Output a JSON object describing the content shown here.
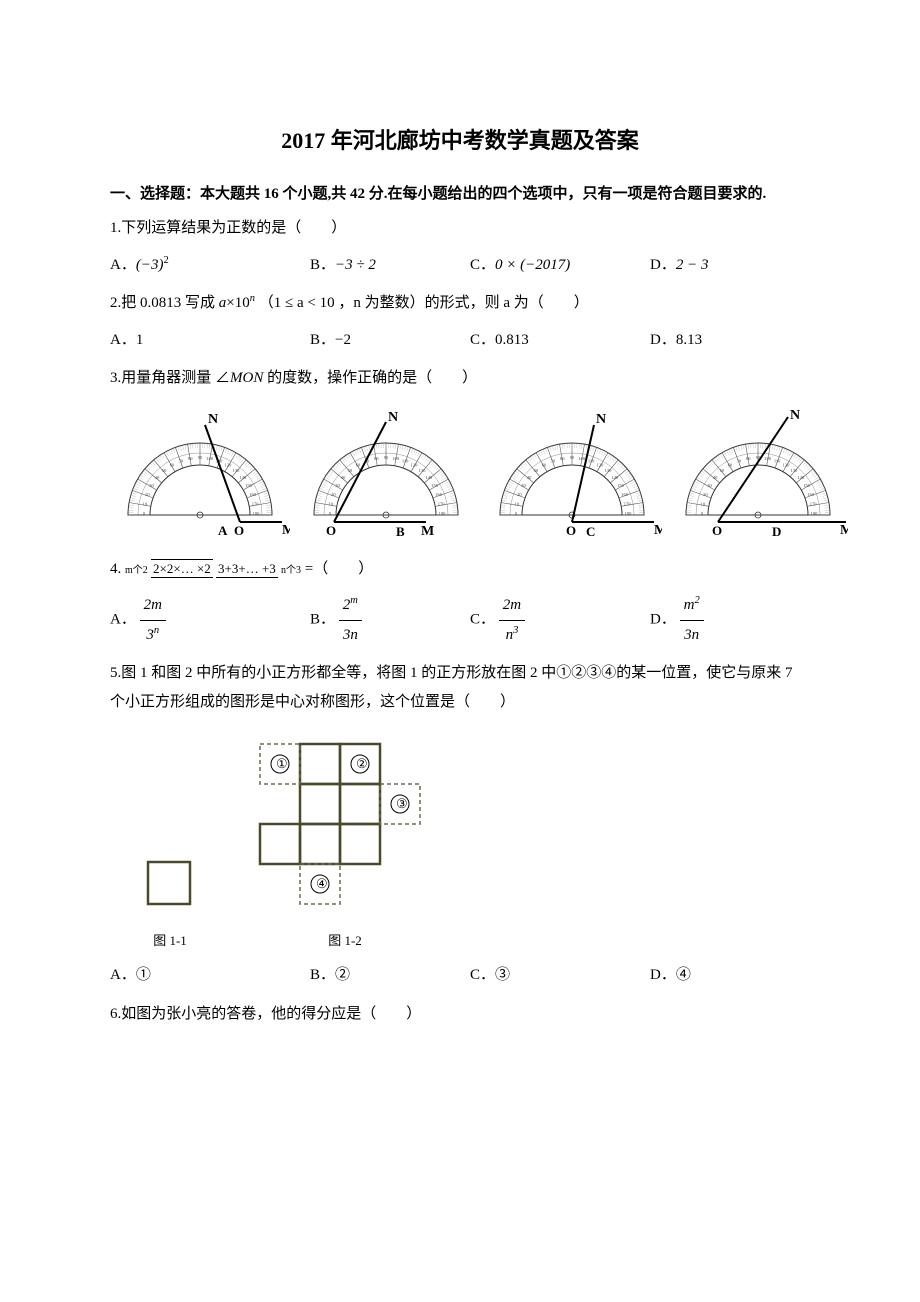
{
  "title": "2017 年河北廊坊中考数学真题及答案",
  "sectionHeader": "一、选择题：本大题共 16 个小题,共 42 分.在每小题给出的四个选项中，只有一项是符合题目要求的.",
  "q1": {
    "text": "1.下列运算结果为正数的是（　　）",
    "A_label": "A．",
    "A_val": "(-3)²",
    "B_label": "B．",
    "B_val": "−3 ÷ 2",
    "C_label": "C．",
    "C_val": "0 × (−2017)",
    "D_label": "D．",
    "D_val": "2 − 3"
  },
  "q2": {
    "prefix": "2.把 0.0813 写成 ",
    "expr": "a × 10ⁿ",
    "mid": " （1 ≤ a < 10 ，n 为整数）的形式，则 a 为（　　）",
    "A": "A．1",
    "B": "B．−2",
    "C": "C．0.813",
    "D": "D．8.13"
  },
  "q3": {
    "text": "3.用量角器测量 ∠MON 的度数，操作正确的是（　　）",
    "labels": {
      "A": "A",
      "B": "B",
      "C": "C",
      "D": "D"
    }
  },
  "protractors": {
    "tick_labels": [
      "0",
      "10",
      "20",
      "30",
      "40",
      "50",
      "60",
      "70",
      "80",
      "90",
      "100",
      "110",
      "120",
      "130",
      "140",
      "150",
      "160",
      "170",
      "180"
    ],
    "inner_labels": [
      "180",
      "170",
      "160",
      "150",
      "140",
      "130",
      "120",
      "110",
      "100",
      "90",
      "80",
      "70",
      "60",
      "50",
      "40",
      "30",
      "20",
      "10",
      "0"
    ],
    "stroke": "#333333",
    "letters": {
      "N": "N",
      "M": "M",
      "O": "O"
    }
  },
  "q4": {
    "prefix": "4. ",
    "top_label": "m个2",
    "numerator": "2×2×… ×2",
    "denominator": "3+3+… +3",
    "bot_label": "n个3",
    "equals": "=（　　）",
    "A_label": "A．",
    "A_num": "2m",
    "A_den": "3ⁿ",
    "B_label": "B．",
    "B_num": "2ᵐ",
    "B_den": "3n",
    "C_label": "C．",
    "C_num": "2m",
    "C_den": "n³",
    "D_label": "D．",
    "D_num": "m²",
    "D_den": "3n"
  },
  "q5": {
    "text": "5.图 1 和图 2 中所有的小正方形都全等，将图 1 的正方形放在图 2 中①②③④的某一位置，使它与原来 7 个小正方形组成的图形是中心对称图形，这个位置是（　　）",
    "fig1_caption": "图 1-1",
    "fig2_caption": "图 1-2",
    "circles": {
      "c1": "①",
      "c2": "②",
      "c3": "③",
      "c4": "④"
    },
    "A": "A．①",
    "B": "B．②",
    "C": "C．③",
    "D": "D．④"
  },
  "q6": {
    "text": "6.如图为张小亮的答卷，他的得分应是（　　）"
  },
  "colors": {
    "text": "#000000",
    "bg": "#ffffff",
    "figure_stroke": "#4a4a2a",
    "dashed": "#6b6b4a"
  }
}
